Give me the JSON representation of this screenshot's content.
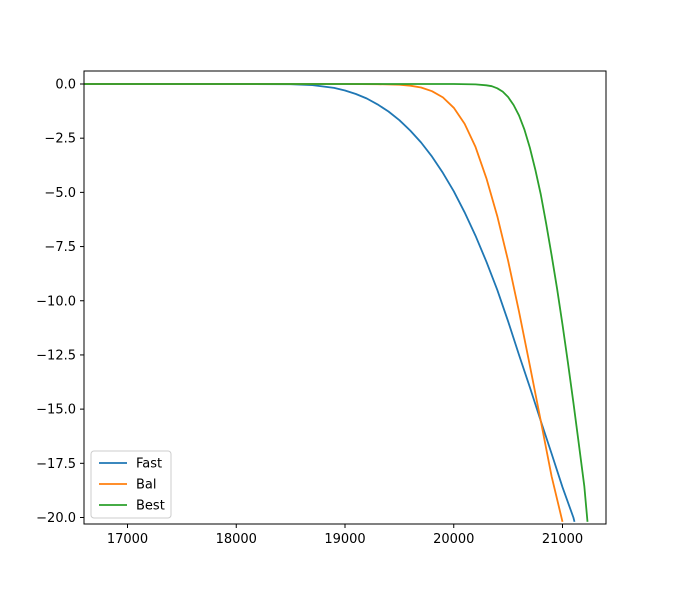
{
  "chart_data": {
    "type": "line",
    "title": "",
    "xlabel": "",
    "ylabel": "",
    "xlim": [
      16600,
      21400
    ],
    "ylim": [
      -20.3,
      0.6
    ],
    "grid": false,
    "legend_position": "lower-left",
    "x_ticks": [
      {
        "value": 17000,
        "label": "17000"
      },
      {
        "value": 18000,
        "label": "18000"
      },
      {
        "value": 19000,
        "label": "19000"
      },
      {
        "value": 20000,
        "label": "20000"
      },
      {
        "value": 21000,
        "label": "21000"
      }
    ],
    "y_ticks": [
      {
        "value": 0.0,
        "label": "0.0"
      },
      {
        "value": -2.5,
        "label": "−2.5"
      },
      {
        "value": -5.0,
        "label": "−5.0"
      },
      {
        "value": -7.5,
        "label": "−7.5"
      },
      {
        "value": -10.0,
        "label": "−10.0"
      },
      {
        "value": -12.5,
        "label": "−12.5"
      },
      {
        "value": -15.0,
        "label": "−15.0"
      },
      {
        "value": -17.5,
        "label": "−17.5"
      },
      {
        "value": -20.0,
        "label": "−20.0"
      }
    ],
    "series": [
      {
        "name": "Fast",
        "color": "#1f77b4",
        "x": [
          16600,
          18000,
          18500,
          18700,
          18900,
          19000,
          19100,
          19200,
          19300,
          19400,
          19500,
          19600,
          19700,
          19800,
          19900,
          20000,
          20100,
          20200,
          20300,
          20400,
          20500,
          20600,
          20700,
          20800,
          20900,
          21000,
          21100,
          21110
        ],
        "y": [
          0,
          0,
          -0.01,
          -0.05,
          -0.18,
          -0.3,
          -0.46,
          -0.67,
          -0.94,
          -1.27,
          -1.67,
          -2.15,
          -2.7,
          -3.35,
          -4.1,
          -4.95,
          -5.92,
          -7.0,
          -8.2,
          -9.5,
          -10.95,
          -12.5,
          -14.0,
          -15.55,
          -17.05,
          -18.6,
          -20.0,
          -20.2
        ]
      },
      {
        "name": "Bal",
        "color": "#ff7f0e",
        "x": [
          16600,
          19000,
          19300,
          19500,
          19600,
          19700,
          19800,
          19900,
          20000,
          20100,
          20200,
          20300,
          20400,
          20500,
          20600,
          20700,
          20800,
          20900,
          21000
        ],
        "y": [
          0,
          0,
          -0.01,
          -0.03,
          -0.08,
          -0.16,
          -0.33,
          -0.62,
          -1.1,
          -1.83,
          -2.9,
          -4.35,
          -6.1,
          -8.15,
          -10.5,
          -13.0,
          -15.55,
          -18.1,
          -20.2
        ]
      },
      {
        "name": "Best",
        "color": "#2ca02c",
        "x": [
          16600,
          20000,
          20200,
          20300,
          20350,
          20400,
          20450,
          20500,
          20550,
          20600,
          20650,
          20700,
          20750,
          20800,
          20850,
          20900,
          20950,
          21000,
          21050,
          21100,
          21150,
          21200,
          21230
        ],
        "y": [
          0,
          0,
          -0.02,
          -0.06,
          -0.1,
          -0.2,
          -0.35,
          -0.6,
          -0.97,
          -1.45,
          -2.1,
          -2.95,
          -3.95,
          -5.1,
          -6.45,
          -7.9,
          -9.45,
          -11.1,
          -12.85,
          -14.7,
          -16.6,
          -18.55,
          -20.2
        ]
      }
    ]
  }
}
